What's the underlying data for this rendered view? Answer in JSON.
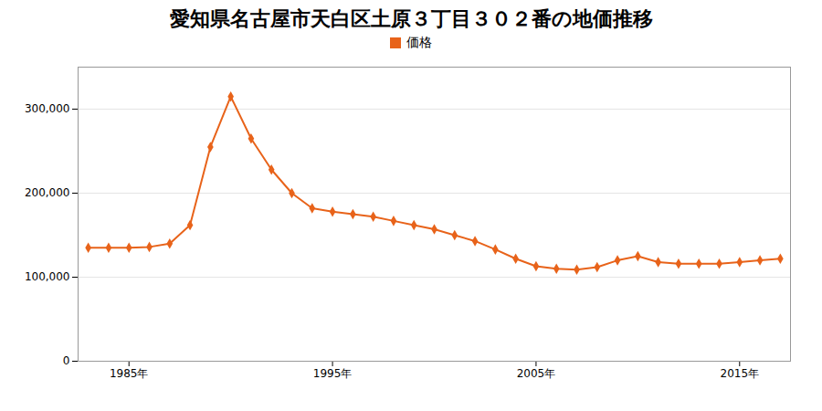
{
  "chart_data": {
    "type": "line",
    "title": "愛知県名古屋市天白区土原３丁目３０２番の地価推移",
    "x": [
      1983,
      1984,
      1985,
      1986,
      1987,
      1988,
      1989,
      1990,
      1991,
      1992,
      1993,
      1994,
      1995,
      1996,
      1997,
      1998,
      1999,
      2000,
      2001,
      2002,
      2003,
      2004,
      2005,
      2006,
      2007,
      2008,
      2009,
      2010,
      2011,
      2012,
      2013,
      2014,
      2015,
      2016,
      2017
    ],
    "series": [
      {
        "name": "価格",
        "color": "#e8631a",
        "marker": "diamond",
        "values": [
          135000,
          135000,
          135000,
          136000,
          140000,
          162000,
          255000,
          315000,
          265000,
          228000,
          200000,
          182000,
          178000,
          175000,
          172000,
          167000,
          162000,
          157000,
          150000,
          143000,
          133000,
          122000,
          113000,
          110000,
          109000,
          112000,
          120000,
          125000,
          118000,
          116000,
          116000,
          116000,
          118000,
          120000,
          122000
        ]
      }
    ],
    "xlim": [
      1982.5,
      2017.5
    ],
    "xticks": [
      {
        "value": 1985,
        "label": "1985年"
      },
      {
        "value": 1995,
        "label": "1995年"
      },
      {
        "value": 2005,
        "label": "2005年"
      },
      {
        "value": 2015,
        "label": "2015年"
      }
    ],
    "ylim": [
      0,
      350000
    ],
    "yticks": [
      0,
      {
        "value": 100000,
        "label": "100,000"
      },
      {
        "value": 200000,
        "label": "200,000"
      },
      {
        "value": 300000,
        "label": "300,000"
      }
    ],
    "grid": true,
    "legend": "top"
  }
}
